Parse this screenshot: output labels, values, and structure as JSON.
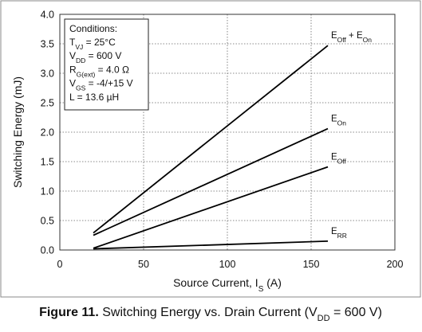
{
  "chart_data": {
    "type": "line",
    "title": "",
    "xlabel": "Source Current, I",
    "xlabel_sub": "S",
    "xlabel_unit": " (A)",
    "ylabel": "Switching Energy (mJ)",
    "xlim": [
      0,
      200
    ],
    "ylim": [
      0.0,
      4.0
    ],
    "x_ticks": [
      "0",
      "50",
      "100",
      "150",
      "200"
    ],
    "y_ticks": [
      "0.0",
      "0.5",
      "1.0",
      "1.5",
      "2.0",
      "2.5",
      "3.0",
      "3.5",
      "4.0"
    ],
    "grid": true,
    "grid_style": "dotted",
    "line_color": "#000000",
    "series": [
      {
        "name": "E_Off + E_On",
        "label": [
          {
            "t": "E"
          },
          {
            "t": "Off",
            "sub": true
          },
          {
            "t": " + E"
          },
          {
            "t": "On",
            "sub": true
          }
        ],
        "x": [
          20,
          160
        ],
        "y": [
          0.29,
          3.47
        ]
      },
      {
        "name": "E_On",
        "label": [
          {
            "t": "E"
          },
          {
            "t": "On",
            "sub": true
          }
        ],
        "x": [
          20,
          160
        ],
        "y": [
          0.25,
          2.06
        ]
      },
      {
        "name": "E_Off",
        "label": [
          {
            "t": "E"
          },
          {
            "t": "Off",
            "sub": true
          }
        ],
        "x": [
          20,
          160
        ],
        "y": [
          0.03,
          1.41
        ]
      },
      {
        "name": "E_RR",
        "label": [
          {
            "t": "E"
          },
          {
            "t": "RR",
            "sub": true
          }
        ],
        "x": [
          20,
          160
        ],
        "y": [
          0.02,
          0.15
        ]
      }
    ],
    "conditions": {
      "heading": "Conditions:",
      "lines": [
        [
          {
            "t": "T"
          },
          {
            "t": "VJ",
            "sub": true
          },
          {
            "t": " = 25°C"
          }
        ],
        [
          {
            "t": "V"
          },
          {
            "t": "DD",
            "sub": true
          },
          {
            "t": " = 600 V"
          }
        ],
        [
          {
            "t": "R"
          },
          {
            "t": "G(ext)",
            "sub": true
          },
          {
            "t": " = 4.0 Ω"
          }
        ],
        [
          {
            "t": "V"
          },
          {
            "t": "GS",
            "sub": true
          },
          {
            "t": " = -4/+15 V"
          }
        ],
        [
          {
            "t": "L = 13.6 µH"
          }
        ]
      ]
    },
    "caption": {
      "bold": "Figure 11.",
      "parts": [
        {
          "t": " Switching Energy vs. Drain Current (V"
        },
        {
          "t": "DD",
          "sub": true
        },
        {
          "t": " = 600 V)"
        }
      ]
    }
  }
}
